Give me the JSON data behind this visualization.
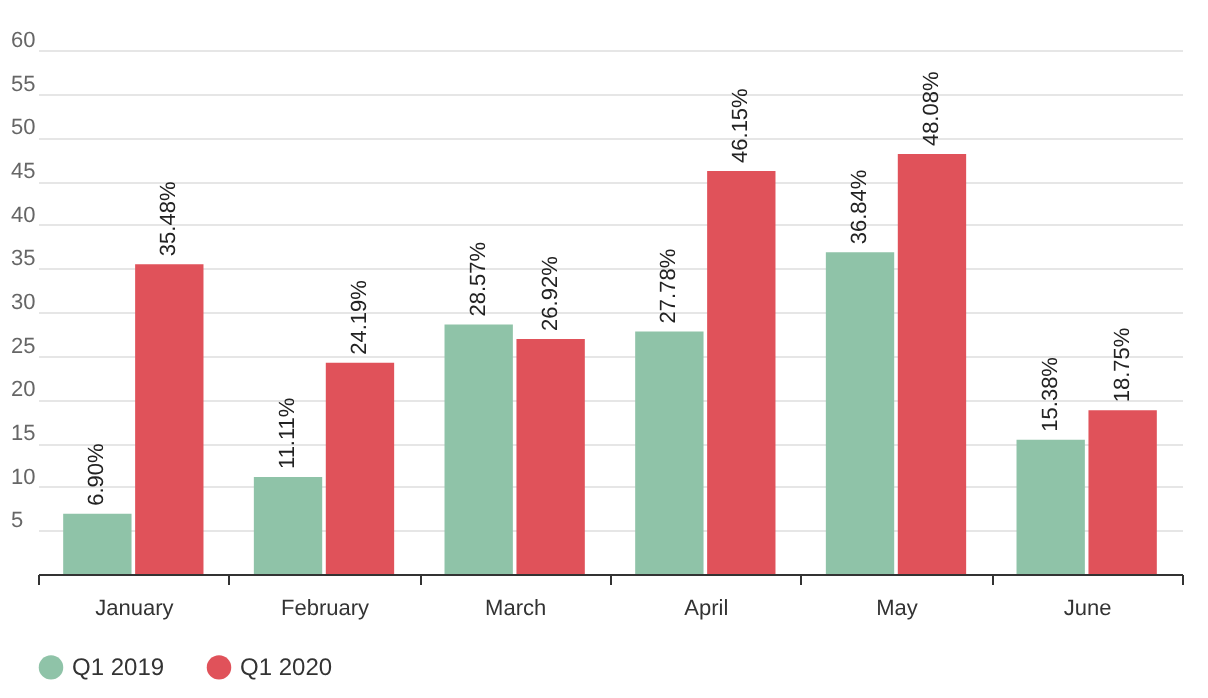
{
  "chart_data": {
    "type": "bar",
    "categories": [
      "January",
      "February",
      "March",
      "April",
      "May",
      "June"
    ],
    "series": [
      {
        "name": "Q1 2019",
        "color": "#8fc3a8",
        "values": [
          6.9,
          11.11,
          28.57,
          27.78,
          36.84,
          15.38
        ],
        "value_labels": [
          "6.90%",
          "11.11%",
          "28.57%",
          "27.78%",
          "36.84%",
          "15.38%"
        ]
      },
      {
        "name": "Q1 2020",
        "color": "#e0525a",
        "values": [
          35.48,
          24.19,
          26.92,
          46.15,
          48.08,
          18.75
        ],
        "value_labels": [
          "35.48%",
          "24.19%",
          "26.92%",
          "46.15%",
          "48.08%",
          "18.75%"
        ]
      }
    ],
    "ylim": [
      0,
      60
    ],
    "yticks": [
      5,
      10,
      15,
      20,
      25,
      30,
      35,
      40,
      45,
      50,
      55,
      60
    ],
    "grid": "y",
    "legend": "bottom"
  }
}
